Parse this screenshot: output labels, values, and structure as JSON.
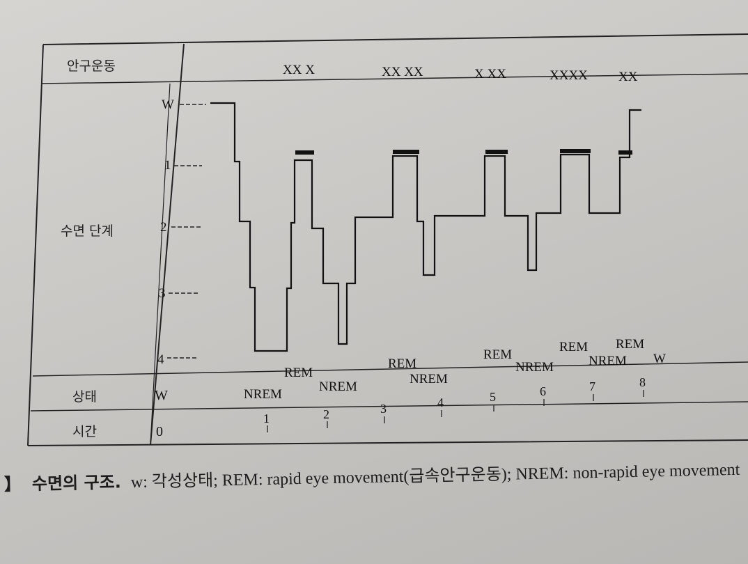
{
  "diagram": {
    "rows": {
      "eye_movement_label": "안구운동",
      "sleep_stage_label": "수면 단계",
      "state_label": "상태",
      "time_label": "시간"
    },
    "eye_movement_marks": [
      "XX X",
      "XX XX",
      "X XX",
      "XXXX",
      "XX"
    ],
    "stage_ticks": [
      "W",
      "1",
      "2",
      "3",
      "4"
    ],
    "state_start": "W",
    "time_start": "0",
    "time_ticks": [
      "1",
      "2",
      "3",
      "4",
      "5",
      "6",
      "7",
      "8"
    ],
    "state_labels": {
      "rem": [
        "REM",
        "REM",
        "REM",
        "REM",
        "REM"
      ],
      "nrem": [
        "NREM",
        "NREM",
        "NREM",
        "NREM",
        "NREM"
      ],
      "end_wake": "W"
    }
  },
  "caption": {
    "mark": "】",
    "title": "수면의 구조.",
    "body": "w: 각성상태; REM: rapid eye movement(급속안구운동); NREM: non-rapid eye movement"
  }
}
